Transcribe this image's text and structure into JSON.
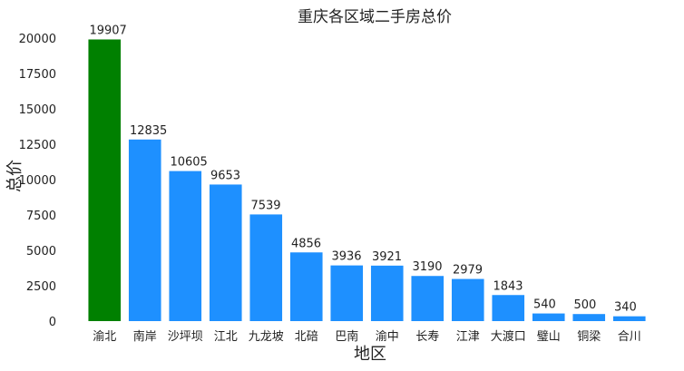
{
  "chart_data": {
    "type": "bar",
    "title": "重庆各区域二手房总价",
    "xlabel": "地区",
    "ylabel": "总价",
    "categories": [
      "渝北",
      "南岸",
      "沙坪坝",
      "江北",
      "九龙坡",
      "北碚",
      "巴南",
      "渝中",
      "长寿",
      "江津",
      "大渡口",
      "璧山",
      "铜梁",
      "合川"
    ],
    "values": [
      19907,
      12835,
      10605,
      9653,
      7539,
      4856,
      3936,
      3921,
      3190,
      2979,
      1843,
      540,
      500,
      340
    ],
    "data_labels": [
      "19907",
      "12835",
      "10605",
      "9653",
      "7539",
      "4856",
      "3936",
      "3921",
      "3190",
      "2979",
      "1843",
      "540",
      "500",
      "340"
    ],
    "yticks": [
      "0",
      "2500",
      "5000",
      "7500",
      "10000",
      "12500",
      "15000",
      "17500",
      "20000"
    ],
    "ylim": [
      0,
      20900
    ],
    "grid": false,
    "colors": {
      "highlight": "#008000",
      "default": "#1e90ff"
    },
    "highlight_index": 0
  }
}
